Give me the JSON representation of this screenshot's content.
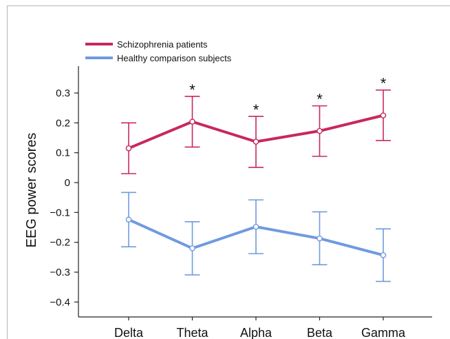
{
  "chart_data": {
    "type": "line",
    "ylabel": "EEG power scores",
    "xlabel": "",
    "categories": [
      "Delta",
      "Theta",
      "Alpha",
      "Beta",
      "Gamma"
    ],
    "ylim": [
      -0.45,
      0.39
    ],
    "yticks": [
      0.3,
      0.2,
      0.1,
      0,
      -0.1,
      -0.2,
      -0.3,
      -0.4
    ],
    "ytick_labels": [
      "0.3",
      "0.2",
      "0.1",
      "0",
      "−0.1",
      "−0.2",
      "−0.3",
      "−0.4"
    ],
    "grid": false,
    "legend_position": "top-left",
    "significance_marker": "*",
    "significant_categories": [
      "Theta",
      "Alpha",
      "Beta",
      "Gamma"
    ],
    "series": [
      {
        "name": "Schizophrenia patients",
        "color": "#c8285a",
        "values": [
          0.115,
          0.204,
          0.137,
          0.173,
          0.225
        ],
        "err_low": [
          0.03,
          0.119,
          0.051,
          0.088,
          0.141
        ],
        "err_high": [
          0.2,
          0.289,
          0.222,
          0.257,
          0.31
        ]
      },
      {
        "name": "Healthy comparison subjects",
        "color": "#6f9ae0",
        "values": [
          -0.124,
          -0.22,
          -0.148,
          -0.187,
          -0.243
        ],
        "err_low": [
          -0.215,
          -0.309,
          -0.238,
          -0.275,
          -0.331
        ],
        "err_high": [
          -0.033,
          -0.131,
          -0.058,
          -0.098,
          -0.155
        ]
      }
    ]
  }
}
